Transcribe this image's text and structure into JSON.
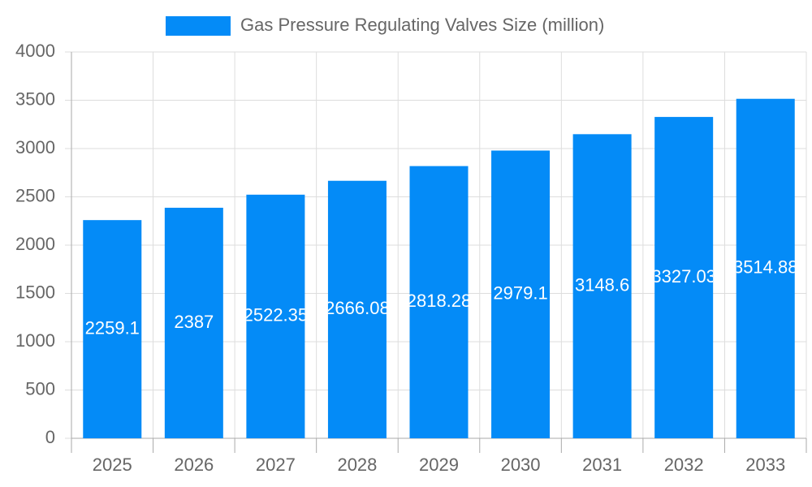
{
  "chart_data": {
    "type": "bar",
    "categories": [
      "2025",
      "2026",
      "2027",
      "2028",
      "2029",
      "2030",
      "2031",
      "2032",
      "2033"
    ],
    "series": [
      {
        "name": "Gas Pressure Regulating Valves Size (million)",
        "color": "#048bf7",
        "values": [
          2259.1,
          2387,
          2522.35,
          2666.08,
          2818.28,
          2979.1,
          3148.6,
          3327.03,
          3514.88
        ]
      }
    ],
    "ylim": [
      0,
      4000
    ],
    "yticks": [
      0,
      500,
      1000,
      1500,
      2000,
      2500,
      3000,
      3500,
      4000
    ],
    "grid": true
  }
}
